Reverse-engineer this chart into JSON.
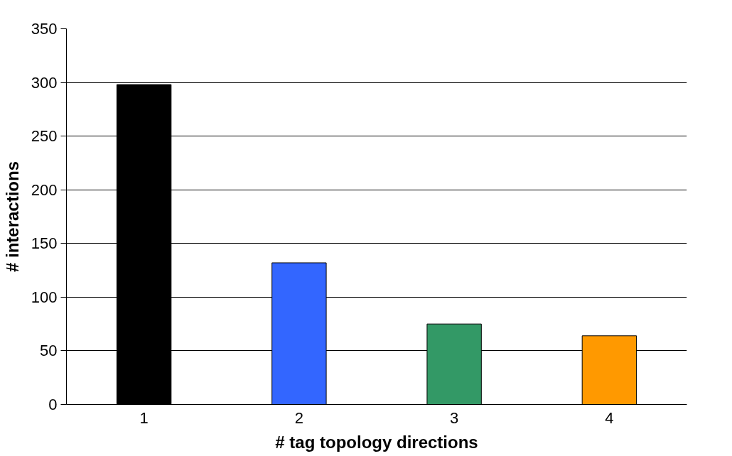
{
  "chart_data": {
    "type": "bar",
    "xlabel": "# tag topology directions",
    "ylabel": "# interactions",
    "categories": [
      "1",
      "2",
      "3",
      "4"
    ],
    "values": [
      298,
      132,
      75,
      64
    ],
    "colors": [
      "#000000",
      "#3366ff",
      "#339966",
      "#ff9900"
    ],
    "ylim": [
      0,
      350
    ],
    "yticks": [
      0,
      50,
      100,
      150,
      200,
      250,
      300,
      350
    ],
    "grid": "y"
  }
}
